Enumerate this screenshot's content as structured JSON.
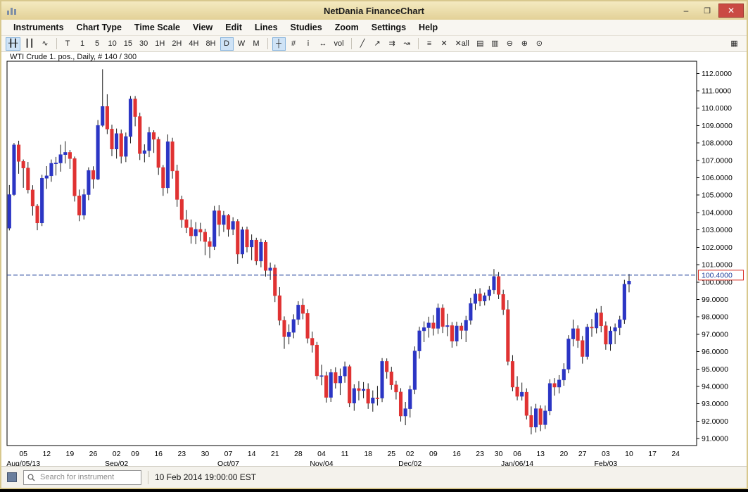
{
  "window": {
    "title": "NetDania FinanceChart",
    "controls": {
      "minimize_glyph": "–",
      "maximize_glyph": "❐",
      "close_glyph": "✕"
    }
  },
  "menu": {
    "items": [
      "Instruments",
      "Chart Type",
      "Time Scale",
      "View",
      "Edit",
      "Lines",
      "Studies",
      "Zoom",
      "Settings",
      "Help"
    ]
  },
  "toolbar": {
    "chart_styles": [
      {
        "glyph": "╂╂",
        "name": "candlestick-style-button",
        "selected": true
      },
      {
        "glyph": "┃┃",
        "name": "ohlc-bars-style-button",
        "selected": false
      },
      {
        "glyph": "∿",
        "name": "line-style-button",
        "selected": false
      }
    ],
    "timeframes": [
      "T",
      "1",
      "5",
      "10",
      "15",
      "30",
      "1H",
      "2H",
      "4H",
      "8H",
      "D",
      "W",
      "M"
    ],
    "selected_timeframe": "D",
    "view_tools": [
      {
        "glyph": "┼",
        "name": "crosshair-tool-button",
        "selected": true
      },
      {
        "glyph": "#",
        "name": "grid-toggle-button",
        "selected": false
      },
      {
        "glyph": "i",
        "name": "info-tool-button",
        "selected": false
      },
      {
        "glyph": "↔",
        "name": "horizontal-scale-button",
        "selected": false
      },
      {
        "glyph": "vol",
        "name": "volume-toggle-button",
        "selected": false
      }
    ],
    "draw_tools": [
      {
        "glyph": "╱",
        "name": "trend-line-tool-button",
        "selected": false
      },
      {
        "glyph": "↗",
        "name": "ray-line-tool-button",
        "selected": false
      },
      {
        "glyph": "⇉",
        "name": "parallel-channel-tool-button",
        "selected": false
      },
      {
        "glyph": "↝",
        "name": "freehand-line-tool-button",
        "selected": false
      }
    ],
    "edit_tools": [
      {
        "glyph": "≡",
        "name": "edit-lines-button",
        "selected": false
      },
      {
        "glyph": "✕",
        "name": "delete-line-button",
        "selected": false
      },
      {
        "glyph": "✕all",
        "name": "delete-all-lines-button",
        "selected": false
      }
    ],
    "output_tools": [
      {
        "glyph": "▤",
        "name": "print-button",
        "selected": false
      },
      {
        "glyph": "▥",
        "name": "print-preview-button",
        "selected": false
      }
    ],
    "zoom_tools": [
      {
        "glyph": "⊖",
        "name": "zoom-out-button",
        "selected": false
      },
      {
        "glyph": "⊕",
        "name": "zoom-in-button",
        "selected": false
      },
      {
        "glyph": "⊙",
        "name": "zoom-interval-button",
        "selected": false
      }
    ],
    "right_button": {
      "glyph": "▦",
      "name": "workspace-layout-button"
    }
  },
  "chart": {
    "label": "WTI Crude 1. pos., Daily, # 140 / 300"
  },
  "chart_data": {
    "type": "candlestick",
    "title": "WTI Crude 1. pos., Daily, # 140 / 300",
    "instrument": "WTI Crude 1. pos.",
    "timeframe": "Daily",
    "ylim": [
      90.6,
      112.7
    ],
    "y_ticks": [
      "91.0000",
      "92.0000",
      "93.0000",
      "94.0000",
      "95.0000",
      "96.0000",
      "97.0000",
      "98.0000",
      "99.0000",
      "100.0000",
      "101.0000",
      "102.0000",
      "103.0000",
      "104.0000",
      "105.0000",
      "106.0000",
      "107.0000",
      "108.0000",
      "109.0000",
      "110.0000",
      "111.0000",
      "112.0000"
    ],
    "price_line": {
      "value": 100.4,
      "label": "100.4000"
    },
    "slots": 148,
    "x_ticks": [
      {
        "i": 3,
        "t": "05"
      },
      {
        "i": 8,
        "t": "12"
      },
      {
        "i": 13,
        "t": "19"
      },
      {
        "i": 18,
        "t": "26"
      },
      {
        "i": 23,
        "t": "02"
      },
      {
        "i": 27,
        "t": "09"
      },
      {
        "i": 32,
        "t": "16"
      },
      {
        "i": 37,
        "t": "23"
      },
      {
        "i": 42,
        "t": "30"
      },
      {
        "i": 47,
        "t": "07"
      },
      {
        "i": 52,
        "t": "14"
      },
      {
        "i": 57,
        "t": "21"
      },
      {
        "i": 62,
        "t": "28"
      },
      {
        "i": 67,
        "t": "04"
      },
      {
        "i": 72,
        "t": "11"
      },
      {
        "i": 77,
        "t": "18"
      },
      {
        "i": 82,
        "t": "25"
      },
      {
        "i": 86,
        "t": "02"
      },
      {
        "i": 91,
        "t": "09"
      },
      {
        "i": 96,
        "t": "16"
      },
      {
        "i": 101,
        "t": "23"
      },
      {
        "i": 105,
        "t": "30"
      },
      {
        "i": 109,
        "t": "06"
      },
      {
        "i": 114,
        "t": "13"
      },
      {
        "i": 119,
        "t": "20"
      },
      {
        "i": 123,
        "t": "27"
      },
      {
        "i": 128,
        "t": "03"
      },
      {
        "i": 133,
        "t": "10"
      },
      {
        "i": 138,
        "t": "17"
      },
      {
        "i": 143,
        "t": "24"
      }
    ],
    "x_month_labels": [
      {
        "i": 3,
        "t": "Aug/05/13"
      },
      {
        "i": 23,
        "t": "Sep/02"
      },
      {
        "i": 47,
        "t": "Oct/07"
      },
      {
        "i": 67,
        "t": "Nov/04"
      },
      {
        "i": 86,
        "t": "Dec/02"
      },
      {
        "i": 109,
        "t": "Jan/06/14"
      },
      {
        "i": 128,
        "t": "Feb/03"
      }
    ],
    "colors": {
      "up": "#2b35c4",
      "down": "#e03232",
      "wick": "#1a1a1a",
      "line": "#20409a",
      "line_label_border": "#d93025"
    },
    "candles": [
      [
        103.1,
        105.58,
        102.97,
        105.03
      ],
      [
        105.03,
        108.0,
        104.96,
        107.89
      ],
      [
        107.89,
        108.13,
        106.23,
        106.94
      ],
      [
        106.94,
        107.05,
        105.42,
        106.56
      ],
      [
        106.56,
        106.91,
        105.1,
        105.3
      ],
      [
        105.3,
        105.57,
        103.82,
        104.37
      ],
      [
        104.37,
        104.48,
        102.98,
        103.4
      ],
      [
        103.4,
        106.17,
        103.22,
        105.97
      ],
      [
        105.97,
        106.67,
        105.36,
        106.11
      ],
      [
        106.11,
        107.05,
        105.77,
        106.83
      ],
      [
        106.83,
        107.2,
        106.13,
        106.85
      ],
      [
        106.85,
        107.9,
        106.35,
        107.33
      ],
      [
        107.33,
        108.1,
        106.82,
        107.46
      ],
      [
        107.46,
        107.6,
        106.51,
        107.1
      ],
      [
        107.1,
        107.22,
        104.63,
        104.96
      ],
      [
        104.96,
        105.32,
        103.5,
        103.85
      ],
      [
        103.85,
        105.35,
        103.6,
        105.03
      ],
      [
        105.03,
        106.6,
        104.71,
        106.42
      ],
      [
        106.42,
        106.66,
        105.38,
        105.92
      ],
      [
        105.92,
        109.32,
        105.86,
        109.01
      ],
      [
        109.01,
        112.24,
        108.92,
        110.1
      ],
      [
        110.1,
        110.8,
        108.51,
        108.8
      ],
      [
        108.8,
        109.05,
        107.24,
        107.65
      ],
      [
        107.65,
        108.83,
        107.1,
        108.54
      ],
      [
        108.54,
        108.77,
        106.82,
        107.23
      ],
      [
        107.23,
        108.6,
        106.9,
        108.37
      ],
      [
        108.37,
        110.7,
        107.98,
        110.53
      ],
      [
        110.53,
        110.7,
        108.96,
        109.52
      ],
      [
        109.52,
        109.74,
        107.02,
        107.39
      ],
      [
        107.39,
        107.92,
        106.89,
        107.56
      ],
      [
        107.56,
        108.92,
        107.19,
        108.6
      ],
      [
        108.6,
        108.73,
        107.43,
        108.21
      ],
      [
        108.21,
        108.35,
        106.16,
        106.59
      ],
      [
        106.59,
        106.73,
        104.96,
        105.42
      ],
      [
        105.42,
        108.49,
        105.1,
        108.07
      ],
      [
        108.07,
        108.3,
        105.95,
        106.39
      ],
      [
        106.39,
        106.75,
        104.33,
        104.75
      ],
      [
        104.75,
        104.97,
        103.12,
        103.59
      ],
      [
        103.59,
        104.15,
        102.82,
        103.13
      ],
      [
        103.13,
        103.6,
        102.21,
        102.66
      ],
      [
        102.66,
        103.45,
        102.18,
        103.03
      ],
      [
        103.03,
        103.41,
        102.35,
        102.87
      ],
      [
        102.87,
        103.07,
        101.55,
        102.33
      ],
      [
        102.33,
        102.58,
        101.38,
        102.04
      ],
      [
        102.04,
        104.38,
        101.85,
        104.1
      ],
      [
        104.1,
        104.43,
        102.64,
        103.31
      ],
      [
        103.31,
        104.09,
        102.88,
        103.84
      ],
      [
        103.84,
        103.91,
        102.61,
        103.03
      ],
      [
        103.03,
        103.73,
        102.7,
        103.49
      ],
      [
        103.49,
        103.62,
        101.05,
        101.61
      ],
      [
        101.61,
        103.18,
        101.37,
        103.01
      ],
      [
        103.01,
        103.19,
        101.71,
        102.02
      ],
      [
        102.02,
        102.74,
        101.26,
        102.41
      ],
      [
        102.41,
        102.55,
        100.98,
        101.21
      ],
      [
        101.21,
        102.49,
        100.85,
        102.29
      ],
      [
        102.29,
        102.41,
        100.32,
        100.67
      ],
      [
        100.67,
        101.12,
        100.12,
        100.81
      ],
      [
        100.81,
        101.01,
        98.85,
        99.22
      ],
      [
        99.22,
        99.71,
        97.51,
        97.8
      ],
      [
        97.8,
        98.03,
        96.16,
        96.86
      ],
      [
        96.86,
        97.57,
        96.42,
        97.11
      ],
      [
        97.11,
        98.15,
        96.77,
        97.85
      ],
      [
        97.85,
        98.9,
        97.53,
        98.68
      ],
      [
        98.68,
        99.05,
        97.86,
        98.2
      ],
      [
        98.2,
        98.44,
        96.48,
        96.77
      ],
      [
        96.77,
        97.15,
        95.95,
        96.38
      ],
      [
        96.38,
        96.56,
        94.39,
        94.61
      ],
      [
        94.61,
        95.25,
        94.07,
        94.62
      ],
      [
        94.62,
        94.85,
        93.07,
        93.37
      ],
      [
        93.37,
        95.01,
        93.11,
        94.8
      ],
      [
        94.8,
        95.1,
        93.88,
        94.2
      ],
      [
        94.2,
        95.03,
        93.51,
        94.6
      ],
      [
        94.6,
        95.43,
        94.21,
        95.14
      ],
      [
        95.14,
        95.25,
        92.82,
        93.04
      ],
      [
        93.04,
        94.12,
        92.6,
        93.88
      ],
      [
        93.88,
        94.31,
        93.2,
        93.76
      ],
      [
        93.76,
        94.25,
        93.32,
        93.84
      ],
      [
        93.84,
        94.18,
        92.71,
        93.03
      ],
      [
        93.03,
        93.77,
        92.55,
        93.34
      ],
      [
        93.34,
        94.03,
        92.9,
        93.33
      ],
      [
        93.33,
        95.63,
        93.1,
        95.44
      ],
      [
        95.44,
        95.61,
        94.45,
        94.84
      ],
      [
        94.84,
        95.13,
        93.81,
        94.09
      ],
      [
        94.09,
        94.33,
        93.25,
        93.68
      ],
      [
        93.68,
        93.9,
        91.98,
        92.3
      ],
      [
        92.3,
        93.11,
        91.77,
        92.72
      ],
      [
        92.72,
        94.05,
        92.21,
        93.82
      ],
      [
        93.82,
        96.3,
        93.55,
        96.04
      ],
      [
        96.04,
        97.43,
        95.6,
        97.2
      ],
      [
        97.2,
        97.74,
        96.55,
        97.38
      ],
      [
        97.38,
        98.01,
        96.81,
        97.65
      ],
      [
        97.65,
        98.1,
        96.93,
        97.34
      ],
      [
        97.34,
        98.76,
        97.02,
        98.51
      ],
      [
        98.51,
        98.72,
        97.07,
        97.44
      ],
      [
        97.44,
        98.18,
        96.89,
        97.5
      ],
      [
        97.5,
        97.7,
        96.23,
        96.6
      ],
      [
        96.6,
        97.72,
        96.31,
        97.48
      ],
      [
        97.48,
        97.66,
        96.71,
        97.22
      ],
      [
        97.22,
        98.06,
        96.55,
        97.8
      ],
      [
        97.8,
        99.1,
        97.55,
        98.77
      ],
      [
        98.77,
        99.59,
        98.4,
        99.32
      ],
      [
        99.32,
        99.65,
        98.61,
        98.91
      ],
      [
        98.91,
        99.4,
        98.66,
        99.22
      ],
      [
        99.22,
        99.78,
        98.95,
        99.55
      ],
      [
        99.55,
        100.75,
        99.31,
        100.32
      ],
      [
        100.32,
        100.58,
        99.02,
        99.29
      ],
      [
        99.29,
        99.56,
        98.11,
        98.42
      ],
      [
        98.42,
        98.97,
        95.21,
        95.44
      ],
      [
        95.44,
        95.8,
        93.72,
        93.96
      ],
      [
        93.96,
        94.59,
        93.2,
        93.43
      ],
      [
        93.43,
        94.22,
        93.19,
        93.67
      ],
      [
        93.67,
        93.89,
        92.1,
        92.33
      ],
      [
        92.33,
        92.85,
        91.24,
        91.66
      ],
      [
        91.66,
        93.0,
        91.35,
        92.72
      ],
      [
        92.72,
        92.91,
        91.43,
        91.8
      ],
      [
        91.8,
        92.9,
        91.55,
        92.59
      ],
      [
        92.59,
        94.41,
        92.34,
        94.17
      ],
      [
        94.17,
        94.48,
        93.47,
        93.96
      ],
      [
        93.96,
        94.65,
        93.6,
        94.37
      ],
      [
        94.37,
        95.33,
        94.04,
        94.99
      ],
      [
        94.99,
        96.95,
        94.76,
        96.73
      ],
      [
        96.73,
        97.84,
        96.3,
        97.32
      ],
      [
        97.32,
        97.51,
        96.22,
        96.64
      ],
      [
        96.64,
        96.9,
        95.31,
        95.72
      ],
      [
        95.72,
        97.6,
        95.55,
        97.41
      ],
      [
        97.41,
        97.88,
        96.85,
        97.36
      ],
      [
        97.36,
        98.47,
        97.05,
        98.23
      ],
      [
        98.23,
        98.62,
        97.11,
        97.49
      ],
      [
        97.49,
        97.74,
        96.11,
        96.43
      ],
      [
        96.43,
        97.45,
        96.05,
        97.19
      ],
      [
        97.19,
        97.62,
        96.43,
        97.38
      ],
      [
        97.38,
        98.06,
        96.95,
        97.84
      ],
      [
        97.84,
        100.13,
        97.6,
        99.88
      ],
      [
        99.88,
        100.47,
        99.41,
        100.06
      ]
    ]
  },
  "statusbar": {
    "search_placeholder": "Search for instrument",
    "timestamp": "10 Feb 2014 19:00:00 EST"
  }
}
